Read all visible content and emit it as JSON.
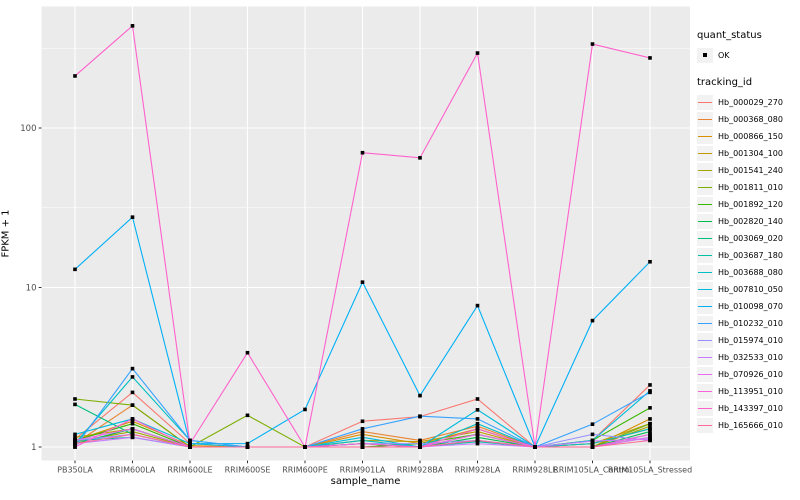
{
  "chart_data": {
    "type": "line",
    "title": "",
    "xlabel": "sample_name",
    "ylabel": "FPKM + 1",
    "y_scale": "log10",
    "y_ticks": [
      "1",
      "10",
      "100"
    ],
    "y_tick_values": [
      1,
      10,
      100
    ],
    "ylim_log": [
      -0.08,
      2.76
    ],
    "grid": true,
    "legend_position": "right",
    "panel_bg": "#EBEBEB",
    "grid_color": "#FFFFFF",
    "marker": "filled-black-square",
    "categories": [
      "PB350LA",
      "RRIM600LA",
      "RRIM600LE",
      "RRIM600SE",
      "RRIM600PE",
      "RRIM901LA",
      "RRIM928BA",
      "RRIM928LA",
      "RRIM928LE",
      "RRIM105LA_Control",
      "RRIM105LA_Stressed"
    ],
    "series": [
      {
        "name": "Hb_000029_270",
        "color": "#F8766D",
        "values": [
          1.12,
          2.2,
          1.05,
          1.0,
          1.0,
          1.45,
          1.55,
          2.0,
          1.0,
          1.1,
          2.45
        ]
      },
      {
        "name": "Hb_000368_080",
        "color": "#EA8331",
        "values": [
          1.05,
          1.83,
          1.0,
          1.0,
          1.0,
          1.25,
          1.1,
          1.35,
          1.0,
          1.05,
          1.3
        ]
      },
      {
        "name": "Hb_000866_150",
        "color": "#D89000",
        "values": [
          1.1,
          1.45,
          1.02,
          1.0,
          1.0,
          1.2,
          1.05,
          1.3,
          1.0,
          1.0,
          1.5
        ]
      },
      {
        "name": "Hb_001304_100",
        "color": "#C09B00",
        "values": [
          1.15,
          1.3,
          1.0,
          1.0,
          1.0,
          1.1,
          1.08,
          1.25,
          1.0,
          1.05,
          1.4
        ]
      },
      {
        "name": "Hb_001541_240",
        "color": "#A3A500",
        "values": [
          1.08,
          1.25,
          1.0,
          1.0,
          1.0,
          1.05,
          1.0,
          1.2,
          1.0,
          1.0,
          1.35
        ]
      },
      {
        "name": "Hb_001811_010",
        "color": "#7CAE00",
        "values": [
          2.0,
          1.83,
          1.0,
          1.58,
          1.0,
          1.05,
          1.0,
          1.3,
          1.0,
          1.0,
          1.4
        ]
      },
      {
        "name": "Hb_001892_120",
        "color": "#39B600",
        "values": [
          1.1,
          1.4,
          1.0,
          1.0,
          1.0,
          1.0,
          1.05,
          1.2,
          1.0,
          1.1,
          1.76
        ]
      },
      {
        "name": "Hb_002820_140",
        "color": "#00BB4E",
        "values": [
          1.05,
          1.3,
          1.0,
          1.0,
          1.0,
          1.0,
          1.0,
          1.15,
          1.0,
          1.0,
          1.25
        ]
      },
      {
        "name": "Hb_003069_020",
        "color": "#00BF7D",
        "values": [
          1.85,
          1.2,
          1.0,
          1.0,
          1.0,
          1.05,
          1.0,
          1.1,
          1.0,
          1.0,
          1.2
        ]
      },
      {
        "name": "Hb_003687_180",
        "color": "#00C1A3",
        "values": [
          1.1,
          1.15,
          1.0,
          1.0,
          1.0,
          1.0,
          1.0,
          1.08,
          1.0,
          1.0,
          1.15
        ]
      },
      {
        "name": "Hb_003688_080",
        "color": "#00BFC4",
        "values": [
          1.05,
          2.75,
          1.1,
          1.0,
          1.0,
          1.1,
          1.0,
          1.4,
          1.0,
          1.05,
          1.3
        ]
      },
      {
        "name": "Hb_007810_050",
        "color": "#00BBDB",
        "values": [
          1.2,
          1.5,
          1.05,
          1.0,
          1.0,
          1.15,
          1.0,
          1.71,
          1.0,
          1.1,
          2.25
        ]
      },
      {
        "name": "Hb_010098_070",
        "color": "#00B0F6",
        "values": [
          13.0,
          27.6,
          1.05,
          1.05,
          1.72,
          10.8,
          2.1,
          7.7,
          1.0,
          6.2,
          14.5
        ]
      },
      {
        "name": "Hb_010232_010",
        "color": "#35A2FF",
        "values": [
          1.0,
          3.1,
          1.1,
          1.0,
          1.0,
          1.3,
          1.56,
          1.5,
          1.0,
          1.39,
          2.2
        ]
      },
      {
        "name": "Hb_015974_010",
        "color": "#9590FF",
        "values": [
          1.1,
          1.2,
          1.0,
          1.0,
          1.0,
          1.05,
          1.05,
          1.1,
          1.0,
          1.2,
          1.1
        ]
      },
      {
        "name": "Hb_032533_010",
        "color": "#C77CFF",
        "values": [
          1.05,
          1.15,
          1.0,
          1.0,
          1.0,
          1.0,
          1.0,
          1.05,
          1.0,
          1.09,
          1.12
        ]
      },
      {
        "name": "Hb_070926_010",
        "color": "#E76BF3",
        "values": [
          1.1,
          1.3,
          1.0,
          1.0,
          1.0,
          1.0,
          1.0,
          1.2,
          1.0,
          1.0,
          1.15
        ]
      },
      {
        "name": "Hb_113951_010",
        "color": "#FA62DB",
        "values": [
          1.0,
          1.5,
          1.0,
          1.0,
          1.0,
          1.05,
          1.0,
          1.3,
          1.0,
          1.0,
          1.2
        ]
      },
      {
        "name": "Hb_143397_010",
        "color": "#FF61CC",
        "values": [
          212,
          437,
          1.05,
          3.9,
          1.0,
          70,
          65,
          295,
          1.0,
          336,
          275
        ]
      },
      {
        "name": "Hb_165666_010",
        "color": "#FF6A98",
        "values": [
          1.05,
          1.2,
          1.0,
          1.0,
          1.0,
          1.0,
          1.0,
          1.1,
          1.0,
          1.0,
          1.1
        ]
      }
    ]
  },
  "legend": {
    "quant_status_title": "quant_status",
    "quant_status_entries": [
      {
        "label": "OK",
        "shape": "filled-square",
        "color": "#000000"
      }
    ],
    "tracking_id_title": "tracking_id"
  },
  "axes": {
    "xlabel": "sample_name",
    "ylabel": "FPKM + 1"
  }
}
